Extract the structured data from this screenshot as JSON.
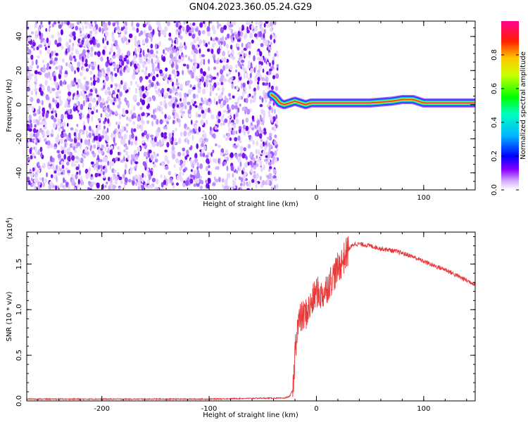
{
  "title": "GN04.2023.360.05.24.G29",
  "chart_data": [
    {
      "type": "heatmap",
      "title": "GN04.2023.360.05.24.G29",
      "xlabel": "Height of straight line (km)",
      "ylabel": "Frequency (Hz)",
      "xlim": [
        -270,
        148
      ],
      "ylim": [
        -50,
        49
      ],
      "xticks": [
        -200,
        -100,
        0,
        100
      ],
      "xtick_labels": [
        "-200",
        "-100",
        "0",
        "100"
      ],
      "yticks": [
        -40,
        -20,
        0,
        20,
        40
      ],
      "ytick_labels": [
        "-40",
        "-20",
        "0",
        "20",
        "40"
      ],
      "noise_region_x": [
        -270,
        -40
      ],
      "signal_ridge": {
        "x": [
          -42,
          -38,
          -34,
          -30,
          -25,
          -20,
          -15,
          -10,
          -5,
          0,
          10,
          20,
          30,
          50,
          70,
          80,
          90,
          100,
          110,
          120,
          130,
          140,
          148
        ],
        "frequency_hz": [
          6,
          4,
          1,
          0,
          1,
          2,
          1,
          0,
          1,
          1,
          1,
          1,
          1,
          1,
          2,
          3,
          3,
          1,
          1,
          1,
          1,
          1,
          1
        ]
      },
      "colorbar": {
        "label": "Normalized spectral amplitude",
        "range": [
          0,
          1
        ],
        "ticks": [
          "0.0",
          "0.2",
          "0.4",
          "0.6",
          "0.8"
        ],
        "colormap": [
          "#ffffff",
          "#c8a0ff",
          "#7a00ff",
          "#0000ff",
          "#00c8ff",
          "#00ff40",
          "#c8ff00",
          "#ffc800",
          "#ff0000",
          "#ff0090"
        ]
      },
      "grid": false
    },
    {
      "type": "line",
      "xlabel": "Height of straight line (km)",
      "ylabel": "SNR (10 * v/v)",
      "y_multiplier_label": "(x10",
      "y_multiplier_exp": "4",
      "y_multiplier_close": ")",
      "xlim": [
        -270,
        148
      ],
      "ylim": [
        0,
        1.85
      ],
      "xticks": [
        -200,
        -100,
        0,
        100
      ],
      "xtick_labels": [
        "-200",
        "-100",
        "0",
        "100"
      ],
      "yticks": [
        0,
        0.5,
        1.0,
        1.5
      ],
      "ytick_labels": [
        "0.0",
        "0.5",
        "1.0",
        "1.5"
      ],
      "series": [
        {
          "color": "#e83a3a",
          "x": [
            -270,
            -200,
            -100,
            -50,
            -30,
            -25,
            -22,
            -21,
            -20,
            -18,
            -15,
            -10,
            -5,
            0,
            5,
            10,
            15,
            20,
            25,
            30,
            35,
            40,
            50,
            60,
            70,
            80,
            90,
            100,
            110,
            120,
            130,
            140,
            148
          ],
          "y": [
            0.02,
            0.02,
            0.02,
            0.03,
            0.03,
            0.05,
            0.12,
            0.25,
            0.55,
            0.8,
            0.9,
            0.95,
            1.05,
            1.2,
            1.15,
            1.25,
            1.35,
            1.45,
            1.55,
            1.66,
            1.72,
            1.72,
            1.7,
            1.67,
            1.65,
            1.62,
            1.58,
            1.53,
            1.48,
            1.44,
            1.38,
            1.32,
            1.28
          ]
        }
      ],
      "grid": false
    }
  ]
}
